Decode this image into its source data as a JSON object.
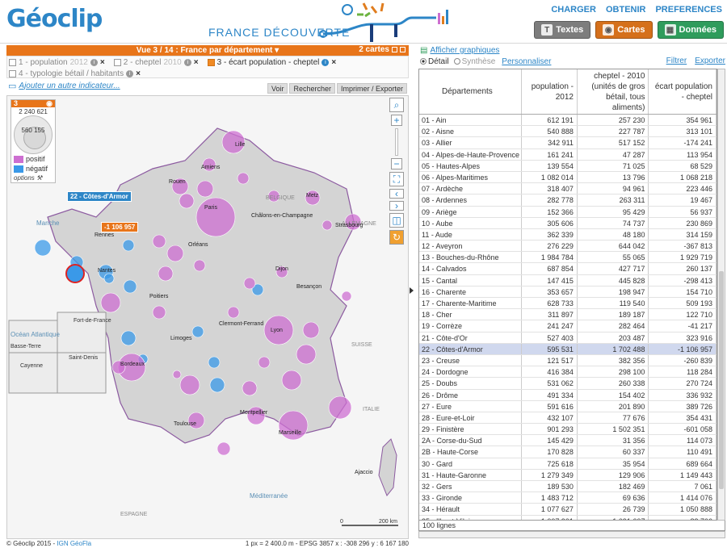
{
  "header": {
    "logo": "Géoclip",
    "logo_o": "o",
    "subtitle": "FRANCE DÉCOUVERTE",
    "menu": [
      "CHARGER",
      "OBTENIR",
      "PREFERENCES"
    ],
    "modes": [
      {
        "label": "Textes",
        "color": "#7d7d7d",
        "icon": "T"
      },
      {
        "label": "Cartes",
        "color": "#d5701b",
        "icon": "◉"
      },
      {
        "label": "Données",
        "color": "#2f9c5c",
        "icon": "1|2"
      }
    ]
  },
  "view": {
    "title": "Vue 3 / 14 : France par département",
    "cards": "2 cartes"
  },
  "indicators": [
    {
      "label": "1 - population",
      "year": "2012",
      "active": false,
      "checked": false
    },
    {
      "label": "2 - cheptel",
      "year": "2010",
      "active": false,
      "checked": false
    },
    {
      "label": "3 - écart population - cheptel",
      "year": "",
      "active": true,
      "checked": true
    },
    {
      "label": "4 - typologie bétail / habitants",
      "year": "",
      "active": false,
      "checked": false
    }
  ],
  "add_indicator": "Ajouter un autre indicateur...",
  "map_tools": [
    "Voir",
    "Rechercher",
    "Imprimer / Exporter"
  ],
  "legend": {
    "num": "3",
    "max": "2 240 621",
    "mid": "560 155",
    "pos_label": "positif",
    "neg_label": "négatif",
    "options": "options",
    "pos_color": "#cd6fd1",
    "neg_color": "#3a99e8"
  },
  "tooltip": {
    "name": "22 - Côtes-d'Armor",
    "value": "-1 106 957"
  },
  "map_labels": {
    "cities": [
      "Lille",
      "Amiens",
      "Rouen",
      "Caen",
      "Paris",
      "Metz",
      "Châlons-en-Champagne",
      "Strasbourg",
      "Rennes",
      "Orléans",
      "Nantes",
      "Dijon",
      "Besançon",
      "Poitiers",
      "Limoges",
      "Clermont-Ferrand",
      "Lyon",
      "Bordeaux",
      "Toulouse",
      "Montpellier",
      "Marseille",
      "Ajaccio"
    ],
    "countries": [
      "BELGIQUE",
      "ALLEMAGNE",
      "SUISSE",
      "ITALIE",
      "ESPAGNE"
    ],
    "seas": [
      "Manche",
      "Océan Atlantique",
      "Méditerranée"
    ],
    "dom": [
      "Basse-Terre",
      "Fort-de-France",
      "Cayenne",
      "Saint-Denis"
    ],
    "scale_0": "0",
    "scale_200": "200 km"
  },
  "map_footer": {
    "copyright": "© Géoclip 2015 - ",
    "source": "IGN GéoFla",
    "coords": "1 px = 2 400.0 m - EPSG 3857   x : -308 296   y : 6 167 180"
  },
  "panel": {
    "show_charts": "Afficher graphiques",
    "detail": "Détail",
    "synthese": "Synthèse",
    "customize": "Personnaliser",
    "filter": "Filtrer",
    "export": "Exporter"
  },
  "table": {
    "headers": [
      "Départements",
      "population - 2012",
      "cheptel - 2010 (unités de gros bétail, tous aliments)",
      "écart population - cheptel"
    ],
    "rows": [
      [
        "01 - Ain",
        "612 191",
        "257 230",
        "354 961"
      ],
      [
        "02 - Aisne",
        "540 888",
        "227 787",
        "313 101"
      ],
      [
        "03 - Allier",
        "342 911",
        "517 152",
        "-174 241"
      ],
      [
        "04 - Alpes-de-Haute-Provence",
        "161 241",
        "47 287",
        "113 954"
      ],
      [
        "05 - Hautes-Alpes",
        "139 554",
        "71 025",
        "68 529"
      ],
      [
        "06 - Alpes-Maritimes",
        "1 082 014",
        "13 796",
        "1 068 218"
      ],
      [
        "07 - Ardèche",
        "318 407",
        "94 961",
        "223 446"
      ],
      [
        "08 - Ardennes",
        "282 778",
        "263 311",
        "19 467"
      ],
      [
        "09 - Ariège",
        "152 366",
        "95 429",
        "56 937"
      ],
      [
        "10 - Aube",
        "305 606",
        "74 737",
        "230 869"
      ],
      [
        "11 - Aude",
        "362 339",
        "48 180",
        "314 159"
      ],
      [
        "12 - Aveyron",
        "276 229",
        "644 042",
        "-367 813"
      ],
      [
        "13 - Bouches-du-Rhône",
        "1 984 784",
        "55 065",
        "1 929 719"
      ],
      [
        "14 - Calvados",
        "687 854",
        "427 717",
        "260 137"
      ],
      [
        "15 - Cantal",
        "147 415",
        "445 828",
        "-298 413"
      ],
      [
        "16 - Charente",
        "353 657",
        "198 947",
        "154 710"
      ],
      [
        "17 - Charente-Maritime",
        "628 733",
        "119 540",
        "509 193"
      ],
      [
        "18 - Cher",
        "311 897",
        "189 187",
        "122 710"
      ],
      [
        "19 - Corrèze",
        "241 247",
        "282 464",
        "-41 217"
      ],
      [
        "21 - Côte-d'Or",
        "527 403",
        "203 487",
        "323 916"
      ],
      [
        "22 - Côtes-d'Armor",
        "595 531",
        "1 702 488",
        "-1 106 957"
      ],
      [
        "23 - Creuse",
        "121 517",
        "382 356",
        "-260 839"
      ],
      [
        "24 - Dordogne",
        "416 384",
        "298 100",
        "118 284"
      ],
      [
        "25 - Doubs",
        "531 062",
        "260 338",
        "270 724"
      ],
      [
        "26 - Drôme",
        "491 334",
        "154 402",
        "336 932"
      ],
      [
        "27 - Eure",
        "591 616",
        "201 890",
        "389 726"
      ],
      [
        "28 - Eure-et-Loir",
        "432 107",
        "77 676",
        "354 431"
      ],
      [
        "29 - Finistère",
        "901 293",
        "1 502 351",
        "-601 058"
      ],
      [
        "2A - Corse-du-Sud",
        "145 429",
        "31 356",
        "114 073"
      ],
      [
        "2B - Haute-Corse",
        "170 828",
        "60 337",
        "110 491"
      ],
      [
        "30 - Gard",
        "725 618",
        "35 954",
        "689 664"
      ],
      [
        "31 - Haute-Garonne",
        "1 279 349",
        "129 906",
        "1 149 443"
      ],
      [
        "32 - Gers",
        "189 530",
        "182 469",
        "7 061"
      ],
      [
        "33 - Gironde",
        "1 483 712",
        "69 636",
        "1 414 076"
      ],
      [
        "34 - Hérault",
        "1 077 627",
        "26 739",
        "1 050 888"
      ],
      [
        "35 - Ille-et-Vilaine",
        "1 007 901",
        "1 091 607",
        "-83 706"
      ]
    ],
    "selected_row": 20,
    "footer": "100 lignes"
  }
}
